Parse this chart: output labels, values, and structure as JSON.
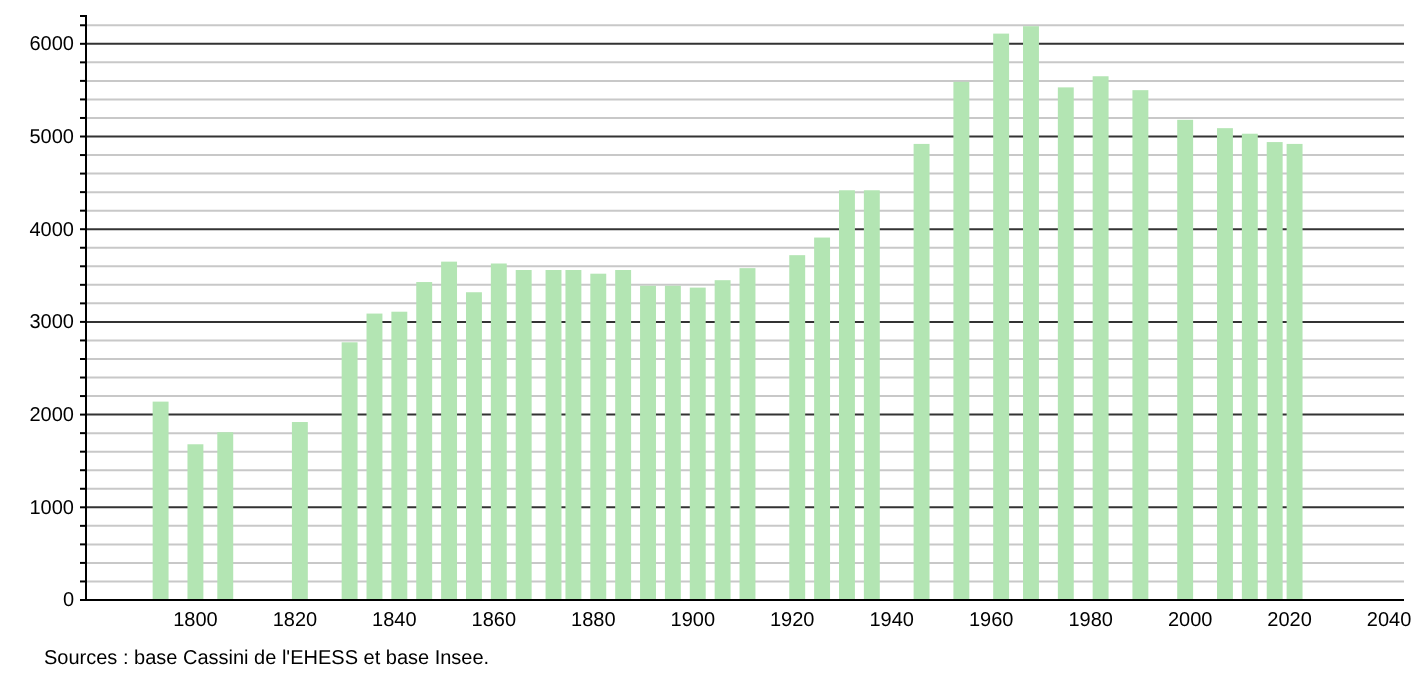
{
  "chart_data": {
    "type": "bar",
    "x": [
      1793,
      1800,
      1806,
      1821,
      1831,
      1836,
      1841,
      1846,
      1851,
      1856,
      1861,
      1866,
      1872,
      1876,
      1881,
      1886,
      1891,
      1896,
      1901,
      1906,
      1911,
      1921,
      1926,
      1931,
      1936,
      1946,
      1954,
      1962,
      1968,
      1975,
      1982,
      1990,
      1999,
      2007,
      2012,
      2017,
      2021
    ],
    "values": [
      2140,
      1680,
      1810,
      1920,
      2780,
      3090,
      3110,
      3430,
      3650,
      3320,
      3630,
      3560,
      3560,
      3560,
      3520,
      3560,
      3390,
      3390,
      3370,
      3450,
      3580,
      3720,
      3910,
      4420,
      4420,
      4920,
      5590,
      6110,
      6190,
      5530,
      5650,
      5500,
      5180,
      5090,
      5030,
      4940,
      4920
    ],
    "color": "#b3e5b3",
    "xlim": [
      1778,
      2043
    ],
    "xticks": [
      1800,
      1820,
      1840,
      1860,
      1880,
      1900,
      1920,
      1940,
      1960,
      1980,
      2000,
      2020,
      2040
    ],
    "ylim": [
      0,
      6300
    ],
    "yticks": [
      0,
      {
        "value": 200,
        "label": null
      },
      {
        "value": 400,
        "label": null
      },
      {
        "value": 600,
        "label": null
      },
      {
        "value": 800,
        "label": null
      },
      1000,
      {
        "value": 1200,
        "label": null
      },
      {
        "value": 1400,
        "label": null
      },
      {
        "value": 1600,
        "label": null
      },
      {
        "value": 1800,
        "label": null
      },
      2000,
      {
        "value": 2200,
        "label": null
      },
      {
        "value": 2400,
        "label": null
      },
      {
        "value": 2600,
        "label": null
      },
      {
        "value": 2800,
        "label": null
      },
      3000,
      {
        "value": 3200,
        "label": null
      },
      {
        "value": 3400,
        "label": null
      },
      {
        "value": 3600,
        "label": null
      },
      {
        "value": 3800,
        "label": null
      },
      4000,
      {
        "value": 4200,
        "label": null
      },
      {
        "value": 4400,
        "label": null
      },
      {
        "value": 4600,
        "label": null
      },
      {
        "value": 4800,
        "label": null
      },
      5000,
      {
        "value": 5200,
        "label": null
      },
      {
        "value": 5400,
        "label": null
      },
      {
        "value": 5600,
        "label": null
      },
      {
        "value": 5800,
        "label": null
      },
      6000,
      {
        "value": 6200,
        "label": null
      }
    ],
    "grid": "y",
    "annotations": [
      "Sources : base Cassini de l'EHESS et base Insee."
    ]
  }
}
